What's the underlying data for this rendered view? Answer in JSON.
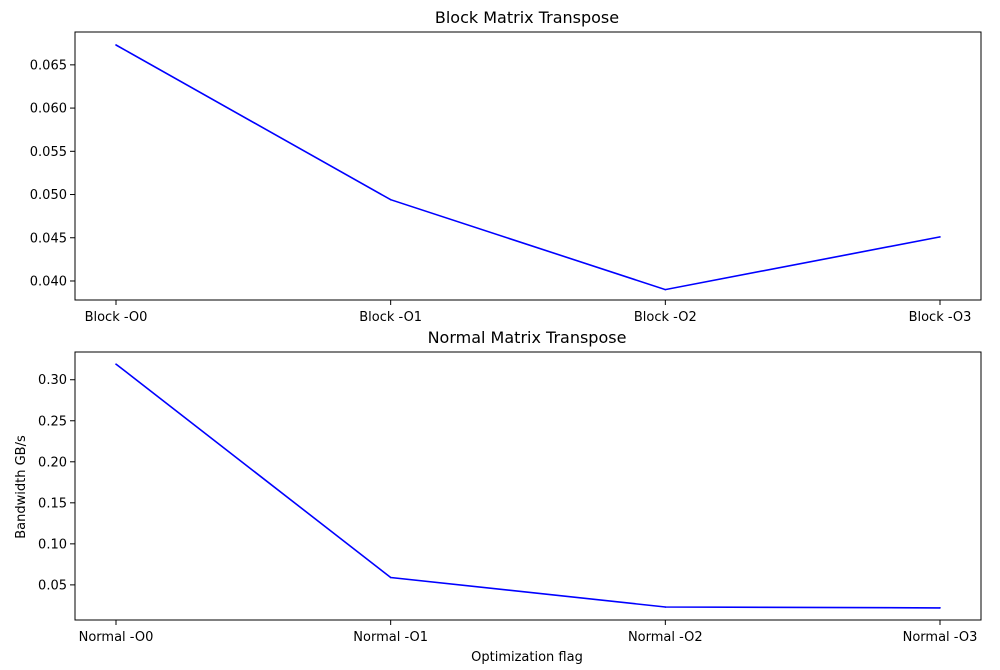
{
  "chart_data": [
    {
      "type": "line",
      "title": "Block Matrix Transpose",
      "xlabel": "",
      "ylabel": "",
      "categories": [
        "Block -O0",
        "Block -O1",
        "Block -O2",
        "Block -O3"
      ],
      "series": [
        {
          "values": [
            0.0673,
            0.0494,
            0.039,
            0.0451
          ],
          "color": "#0000ff"
        }
      ],
      "ylim": [
        0.0378,
        0.0688
      ],
      "yticks": [
        0.04,
        0.045,
        0.05,
        0.055,
        0.06,
        0.065
      ],
      "ytick_labels": [
        "0.040",
        "0.045",
        "0.050",
        "0.055",
        "0.060",
        "0.065"
      ],
      "grid": false
    },
    {
      "type": "line",
      "title": "Normal Matrix Transpose",
      "xlabel": "Optimization flag",
      "ylabel": "Bandwidth GB/s",
      "categories": [
        "Normal -O0",
        "Normal -O1",
        "Normal -O2",
        "Normal -O3"
      ],
      "series": [
        {
          "values": [
            0.319,
            0.059,
            0.023,
            0.022
          ],
          "color": "#0000ff"
        }
      ],
      "ylim": [
        0.0072,
        0.3338
      ],
      "yticks": [
        0.05,
        0.1,
        0.15,
        0.2,
        0.25,
        0.3
      ],
      "ytick_labels": [
        "0.05",
        "0.10",
        "0.15",
        "0.20",
        "0.25",
        "0.30"
      ],
      "grid": false
    }
  ]
}
